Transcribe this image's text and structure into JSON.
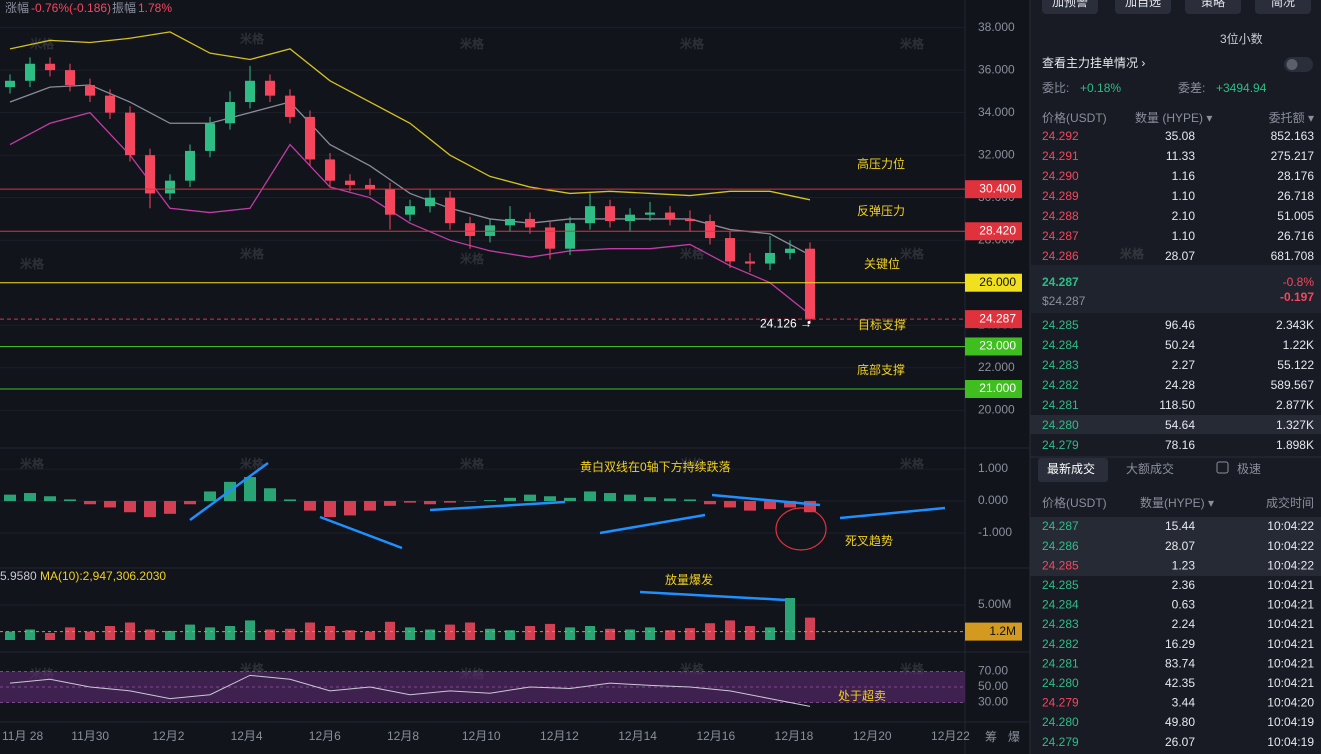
{
  "header": {
    "change_label": "涨幅",
    "change": "-0.76%(-0.186)",
    "amp_label": "振幅",
    "amp": "1.78%"
  },
  "watermark": "米格",
  "annotations": [
    "高压力位",
    "反弹压力",
    "关键位",
    "目标支撑",
    "底部支撑",
    "黄白双线在0轴下方持续跌落",
    "死叉趋势",
    "放量爆发",
    "处于超卖"
  ],
  "chart_data": [
    {
      "type": "candlestick",
      "up_color": "#2ebd85",
      "down_color": "#f6465d",
      "candles": [
        [
          35.2,
          35.8,
          34.9,
          35.5
        ],
        [
          35.5,
          36.6,
          35.2,
          36.3
        ],
        [
          36.3,
          36.6,
          35.7,
          36.0
        ],
        [
          36.0,
          36.3,
          35.0,
          35.3
        ],
        [
          35.3,
          35.6,
          34.5,
          34.8
        ],
        [
          34.8,
          35.1,
          33.7,
          34.0
        ],
        [
          34.0,
          34.3,
          31.7,
          32.0
        ],
        [
          32.0,
          32.3,
          29.5,
          30.2
        ],
        [
          30.2,
          31.1,
          29.9,
          30.8
        ],
        [
          30.8,
          32.5,
          30.5,
          32.2
        ],
        [
          32.2,
          33.8,
          31.9,
          33.5
        ],
        [
          33.5,
          35.0,
          33.2,
          34.5
        ],
        [
          34.5,
          36.2,
          34.2,
          35.5
        ],
        [
          35.5,
          35.8,
          34.5,
          34.8
        ],
        [
          34.8,
          35.1,
          33.5,
          33.8
        ],
        [
          33.8,
          34.1,
          31.5,
          31.8
        ],
        [
          31.8,
          32.1,
          30.5,
          30.8
        ],
        [
          30.8,
          31.1,
          30.3,
          30.6
        ],
        [
          30.6,
          30.9,
          30.1,
          30.4
        ],
        [
          30.4,
          30.7,
          28.5,
          29.2
        ],
        [
          29.2,
          29.9,
          28.9,
          29.6
        ],
        [
          29.6,
          30.4,
          29.3,
          30.0
        ],
        [
          30.0,
          30.3,
          28.5,
          28.8
        ],
        [
          28.8,
          29.1,
          27.6,
          28.2
        ],
        [
          28.2,
          29.0,
          27.9,
          28.7
        ],
        [
          28.7,
          29.6,
          28.4,
          29.0
        ],
        [
          29.0,
          29.3,
          28.3,
          28.6
        ],
        [
          28.6,
          28.9,
          27.1,
          27.6
        ],
        [
          27.6,
          29.1,
          27.3,
          28.8
        ],
        [
          28.8,
          30.2,
          28.5,
          29.6
        ],
        [
          29.6,
          29.9,
          28.6,
          28.9
        ],
        [
          28.9,
          29.5,
          28.4,
          29.2
        ],
        [
          29.2,
          29.8,
          28.9,
          29.3
        ],
        [
          29.3,
          29.6,
          28.7,
          29.0
        ],
        [
          29.0,
          29.4,
          28.4,
          28.9
        ],
        [
          28.9,
          29.2,
          27.8,
          28.1
        ],
        [
          28.1,
          28.4,
          26.7,
          27.0
        ],
        [
          27.0,
          27.4,
          26.5,
          26.9
        ],
        [
          26.9,
          28.2,
          26.6,
          27.4
        ],
        [
          27.4,
          28.0,
          27.1,
          27.6
        ],
        [
          27.6,
          27.9,
          24.1,
          24.3
        ]
      ],
      "bands": [
        {
          "color": "#d4c21f",
          "values": [
            37.0,
            37.4,
            37.3,
            37.5,
            37.8,
            36.8,
            36.5,
            37.0,
            35.5,
            34.5,
            33.5,
            32.0,
            31.0,
            30.5,
            30.2,
            30.3,
            30.2,
            30.1,
            30.3,
            30.3,
            29.9
          ]
        },
        {
          "color": "#8a8d99",
          "values": [
            34.5,
            35.2,
            35.3,
            34.5,
            33.5,
            33.5,
            34.0,
            34.5,
            32.5,
            31.5,
            30.2,
            29.5,
            29.0,
            28.8,
            29.0,
            29.0,
            29.0,
            29.0,
            28.5,
            28.3,
            27.3
          ]
        },
        {
          "color": "#c23ca6",
          "values": [
            32.5,
            33.5,
            34.0,
            32.0,
            29.5,
            29.3,
            29.5,
            32.5,
            30.5,
            30.0,
            28.8,
            28.0,
            27.5,
            27.2,
            27.5,
            27.6,
            27.6,
            27.8,
            26.8,
            26.0,
            24.5
          ]
        }
      ],
      "levels": [
        {
          "value": 30.4,
          "label": "30.400",
          "color": "#e0323c",
          "text_color": "#ffffff"
        },
        {
          "value": 28.42,
          "label": "28.420",
          "color": "#e0323c",
          "text_color": "#ffffff"
        },
        {
          "value": 26,
          "label": "26.000",
          "color": "#f0e020",
          "text_color": "#111111"
        },
        {
          "value": 24.287,
          "label": "24.287",
          "color": "#e0323c",
          "text_color": "#ffffff",
          "dashed": true
        },
        {
          "value": 23,
          "label": "23.000",
          "color": "#3fbf1f",
          "text_color": "#ffffff"
        },
        {
          "value": 21,
          "label": "21.000",
          "color": "#3fbf1f",
          "text_color": "#ffffff"
        }
      ],
      "low": 24.126,
      "low_label": "24.126 →",
      "ylim": [
        18.6,
        39.3
      ],
      "yticks": [
        {
          "value": 38,
          "label": "38.000"
        },
        {
          "value": 36,
          "label": "36.000"
        },
        {
          "value": 34,
          "label": "34.000"
        },
        {
          "value": 32,
          "label": "32.000"
        },
        {
          "value": 30,
          "label": "30.000"
        },
        {
          "value": 28,
          "label": "28.000"
        },
        {
          "value": 26,
          "label": "26.000"
        },
        {
          "value": 24,
          "label": "24.000"
        },
        {
          "value": 22,
          "label": "22.000"
        },
        {
          "value": 20,
          "label": "20.000"
        }
      ],
      "dates": [
        "11月 28",
        "11月30",
        "12月2",
        "12月4",
        "12月6",
        "12月8",
        "12月10",
        "12月12",
        "12月14",
        "12月16",
        "12月18",
        "12月20",
        "12月22"
      ]
    },
    {
      "type": "bar",
      "up_color": "#2ebd85",
      "down_color": "#f6465d",
      "values": [
        0.2,
        0.25,
        0.15,
        0.05,
        -0.1,
        -0.2,
        -0.35,
        -0.5,
        -0.4,
        -0.1,
        0.3,
        0.6,
        0.75,
        0.4,
        0.05,
        -0.3,
        -0.5,
        -0.45,
        -0.3,
        -0.15,
        -0.05,
        -0.1,
        -0.05,
        -0.02,
        0.03,
        0.1,
        0.2,
        0.15,
        0.1,
        0.3,
        0.25,
        0.2,
        0.12,
        0.08,
        0.05,
        -0.1,
        -0.2,
        -0.3,
        -0.25,
        -0.2,
        -0.35
      ],
      "ylim": [
        -2,
        1.44
      ],
      "yticks": [
        {
          "value": 1,
          "label": "1.000"
        },
        {
          "value": 0,
          "label": "0.000"
        },
        {
          "value": -1,
          "label": "-1.000"
        }
      ]
    },
    {
      "type": "volume",
      "up_color": "#2ebd85",
      "down_color": "#f6465d",
      "prefix": "5.9580",
      "ma_label": "MA(10):2,947,306.2030",
      "values": [
        1200000,
        1500000,
        1000000,
        1800000,
        1200000,
        2000000,
        2500000,
        1500000,
        1300000,
        2200000,
        1800000,
        2000000,
        2800000,
        1500000,
        1600000,
        2500000,
        2000000,
        1400000,
        1200000,
        2600000,
        1800000,
        1500000,
        2200000,
        2500000,
        1600000,
        1400000,
        2000000,
        2300000,
        1800000,
        2000000,
        1600000,
        1500000,
        1800000,
        1400000,
        1700000,
        2400000,
        2800000,
        2000000,
        1800000,
        6000000,
        3200000
      ],
      "badge": {
        "value": 1200000,
        "label": "1.2M"
      },
      "ylim": [
        0,
        10000000
      ],
      "yticks": [
        {
          "value": 5000000,
          "label": "5.00M"
        }
      ]
    },
    {
      "type": "line",
      "color": "#c9c9d6",
      "band_color": "#5b2a70",
      "values": [
        55,
        60,
        50,
        45,
        35,
        40,
        65,
        60,
        45,
        50,
        40,
        45,
        42,
        50,
        48,
        55,
        52,
        50,
        45,
        35,
        25
      ],
      "ylim": [
        10,
        84.8
      ],
      "yticks": [
        {
          "value": 70,
          "label": "70.00"
        },
        {
          "value": 50,
          "label": "50.00"
        },
        {
          "value": 30,
          "label": "30.00"
        }
      ]
    }
  ],
  "axis_tools": [
    "筹",
    "爆"
  ],
  "panel": {
    "toolbar": [
      "加预警",
      "加自选",
      "策略",
      "简况"
    ],
    "decimals": "3位小数",
    "depth_link": "查看主力挂单情况 ›",
    "ratio_label": "委比:",
    "ratio": "+0.18%",
    "diff_label": "委差:",
    "diff": "+3494.94",
    "book_headers": [
      "价格(USDT)",
      "数量 (HYPE) ▾",
      "委托额 ▾"
    ],
    "asks": [
      [
        "24.292",
        "35.08",
        "852.163"
      ],
      [
        "24.291",
        "11.33",
        "275.217"
      ],
      [
        "24.290",
        "1.16",
        "28.176"
      ],
      [
        "24.289",
        "1.10",
        "26.718"
      ],
      [
        "24.288",
        "2.10",
        "51.005"
      ],
      [
        "24.287",
        "1.10",
        "26.716"
      ],
      [
        "24.286",
        "28.07",
        "681.708"
      ]
    ],
    "mid": {
      "price": "24.287",
      "usd": "$24.287",
      "pct": "-0.8%",
      "chg": "-0.197"
    },
    "bids": [
      [
        "24.285",
        "96.46",
        "2.343K"
      ],
      [
        "24.284",
        "50.24",
        "1.22K"
      ],
      [
        "24.283",
        "2.27",
        "55.122"
      ],
      [
        "24.282",
        "24.28",
        "589.567"
      ],
      [
        "24.281",
        "118.50",
        "2.877K"
      ],
      [
        "24.280",
        "54.64",
        "1.327K"
      ],
      [
        "24.279",
        "78.16",
        "1.898K"
      ]
    ],
    "trade_tabs": [
      "最新成交",
      "大额成交",
      "极速"
    ],
    "trade_headers": [
      "价格(USDT)",
      "数量(HYPE) ▾",
      "成交时间"
    ],
    "trades": [
      [
        "24.287",
        "15.44",
        "10:04:22"
      ],
      [
        "24.286",
        "28.07",
        "10:04:22"
      ],
      [
        "24.285",
        "1.23",
        "10:04:22"
      ],
      [
        "24.285",
        "2.36",
        "10:04:21"
      ],
      [
        "24.284",
        "0.63",
        "10:04:21"
      ],
      [
        "24.283",
        "2.24",
        "10:04:21"
      ],
      [
        "24.282",
        "16.29",
        "10:04:21"
      ],
      [
        "24.281",
        "83.74",
        "10:04:21"
      ],
      [
        "24.280",
        "42.35",
        "10:04:21"
      ],
      [
        "24.279",
        "3.44",
        "10:04:20"
      ],
      [
        "24.280",
        "49.80",
        "10:04:19"
      ],
      [
        "24.279",
        "26.07",
        "10:04:19"
      ]
    ],
    "trade_colors": [
      "#2ebd85",
      "#2ebd85",
      "#f6465d",
      "#2ebd85",
      "#2ebd85",
      "#2ebd85",
      "#2ebd85",
      "#2ebd85",
      "#2ebd85",
      "#f6465d",
      "#2ebd85",
      "#2ebd85"
    ]
  }
}
